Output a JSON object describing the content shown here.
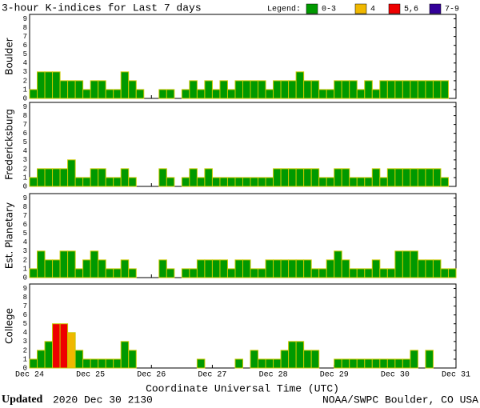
{
  "chart_data": {
    "type": "bar",
    "title": "3-hour K-indices for Last 7 days",
    "legend_title": "Legend:",
    "legend": [
      {
        "label": "0-3",
        "color": "#009900"
      },
      {
        "label": "4",
        "color": "#f0b800"
      },
      {
        "label": "5,6",
        "color": "#ee0000"
      },
      {
        "label": "7-9",
        "color": "#330099"
      }
    ],
    "xlabel": "Coordinate Universal Time (UTC)",
    "xtick_labels": [
      "Dec 24",
      "Dec 25",
      "Dec 26",
      "Dec 27",
      "Dec 28",
      "Dec 29",
      "Dec 30",
      "Dec 31"
    ],
    "ylim": [
      0,
      9.5
    ],
    "yticks": [
      0,
      1,
      2,
      3,
      4,
      5,
      6,
      7,
      8,
      9
    ],
    "panels": [
      {
        "name": "Boulder",
        "values": [
          1,
          3,
          3,
          3,
          2,
          2,
          2,
          1,
          2,
          2,
          1,
          1,
          3,
          2,
          1,
          0,
          0,
          1,
          1,
          0,
          1,
          2,
          1,
          2,
          1,
          2,
          1,
          2,
          2,
          2,
          2,
          1,
          2,
          2,
          2,
          3,
          2,
          2,
          1,
          1,
          2,
          2,
          2,
          1,
          2,
          1,
          2,
          2,
          2,
          2,
          2,
          2,
          2,
          2,
          2,
          0
        ]
      },
      {
        "name": "Fredericksburg",
        "values": [
          1,
          2,
          2,
          2,
          2,
          3,
          1,
          1,
          2,
          2,
          1,
          1,
          2,
          1,
          0,
          0,
          0,
          2,
          1,
          0,
          1,
          2,
          1,
          2,
          1,
          1,
          1,
          1,
          1,
          1,
          1,
          1,
          2,
          2,
          2,
          2,
          2,
          2,
          1,
          1,
          2,
          2,
          1,
          1,
          1,
          2,
          1,
          2,
          2,
          2,
          2,
          2,
          2,
          2,
          1,
          0
        ]
      },
      {
        "name": "Est. Planetary",
        "values": [
          1,
          3,
          2,
          2,
          3,
          3,
          1,
          2,
          3,
          2,
          1,
          1,
          2,
          1,
          0,
          0,
          0,
          2,
          1,
          0,
          1,
          1,
          2,
          2,
          2,
          2,
          1,
          2,
          2,
          1,
          1,
          2,
          2,
          2,
          2,
          2,
          2,
          1,
          1,
          2,
          3,
          2,
          1,
          1,
          1,
          2,
          1,
          1,
          3,
          3,
          3,
          2,
          2,
          2,
          1,
          1
        ]
      },
      {
        "name": "College",
        "values": [
          1,
          2,
          3,
          5,
          5,
          4,
          2,
          1,
          1,
          1,
          1,
          1,
          3,
          2,
          0,
          0,
          0,
          0,
          0,
          0,
          0,
          0,
          1,
          0,
          0,
          0,
          0,
          1,
          0,
          2,
          1,
          1,
          1,
          2,
          3,
          3,
          2,
          2,
          0,
          0,
          1,
          1,
          1,
          1,
          1,
          1,
          1,
          1,
          1,
          1,
          2,
          0,
          2,
          0,
          0,
          0
        ]
      }
    ]
  },
  "footer": {
    "updated_label": "Updated",
    "updated": "2020 Dec 30 2130",
    "credit": "NOAA/SWPC Boulder, CO USA"
  }
}
